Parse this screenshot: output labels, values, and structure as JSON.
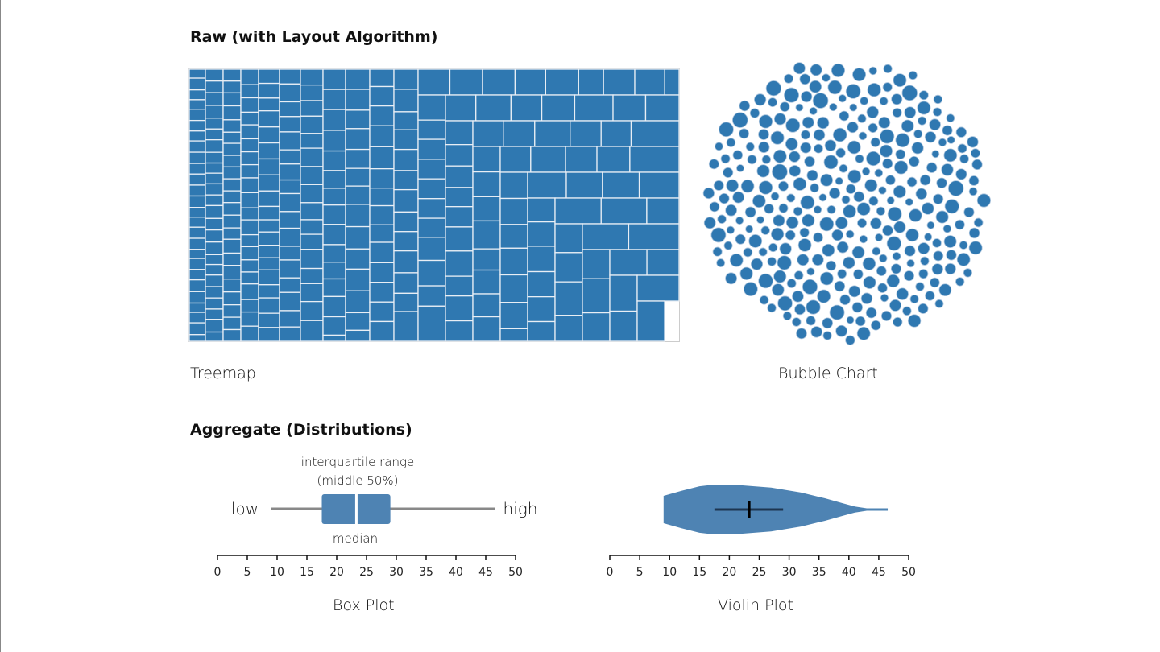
{
  "sections": {
    "raw_title": "Raw (with Layout Algorithm)",
    "aggregate_title": "Aggregate (Distributions)"
  },
  "colors": {
    "fill": "#2f78b1",
    "box": "#4e83b3",
    "whisker": "#888888"
  },
  "chart_data": [
    {
      "type": "treemap",
      "caption": "Treemap",
      "note": "many equal-ish rectangles laid out in a staircase slice-and-dice pattern"
    },
    {
      "type": "bubble",
      "caption": "Bubble Chart",
      "note": "hundreds of small circles packed into a circle"
    },
    {
      "type": "box",
      "caption": "Box Plot",
      "low": 9,
      "q1": 17.5,
      "median": 23.3,
      "q3": 29,
      "high": 46.5,
      "labels": {
        "low": "low",
        "high": "high",
        "iqr": "interquartile range",
        "iqr_sub": "(middle 50%)",
        "median": "median"
      },
      "xlim": [
        0,
        50
      ],
      "ticks": [
        "0",
        "5",
        "10",
        "15",
        "20",
        "25",
        "30",
        "35",
        "40",
        "45",
        "50"
      ]
    },
    {
      "type": "violin",
      "caption": "Violin Plot",
      "min": 9,
      "max": 46.5,
      "q1": 17.5,
      "median": 23.3,
      "q3": 29,
      "density": [
        [
          9,
          0.55
        ],
        [
          12,
          0.75
        ],
        [
          15,
          0.93
        ],
        [
          17.5,
          1.0
        ],
        [
          22,
          0.97
        ],
        [
          27,
          0.88
        ],
        [
          32,
          0.68
        ],
        [
          36,
          0.45
        ],
        [
          39,
          0.25
        ],
        [
          41,
          0.12
        ],
        [
          43,
          0.05
        ],
        [
          46.5,
          0.05
        ]
      ],
      "xlim": [
        0,
        50
      ],
      "ticks": [
        "0",
        "5",
        "10",
        "15",
        "20",
        "25",
        "30",
        "35",
        "40",
        "45",
        "50"
      ]
    }
  ]
}
